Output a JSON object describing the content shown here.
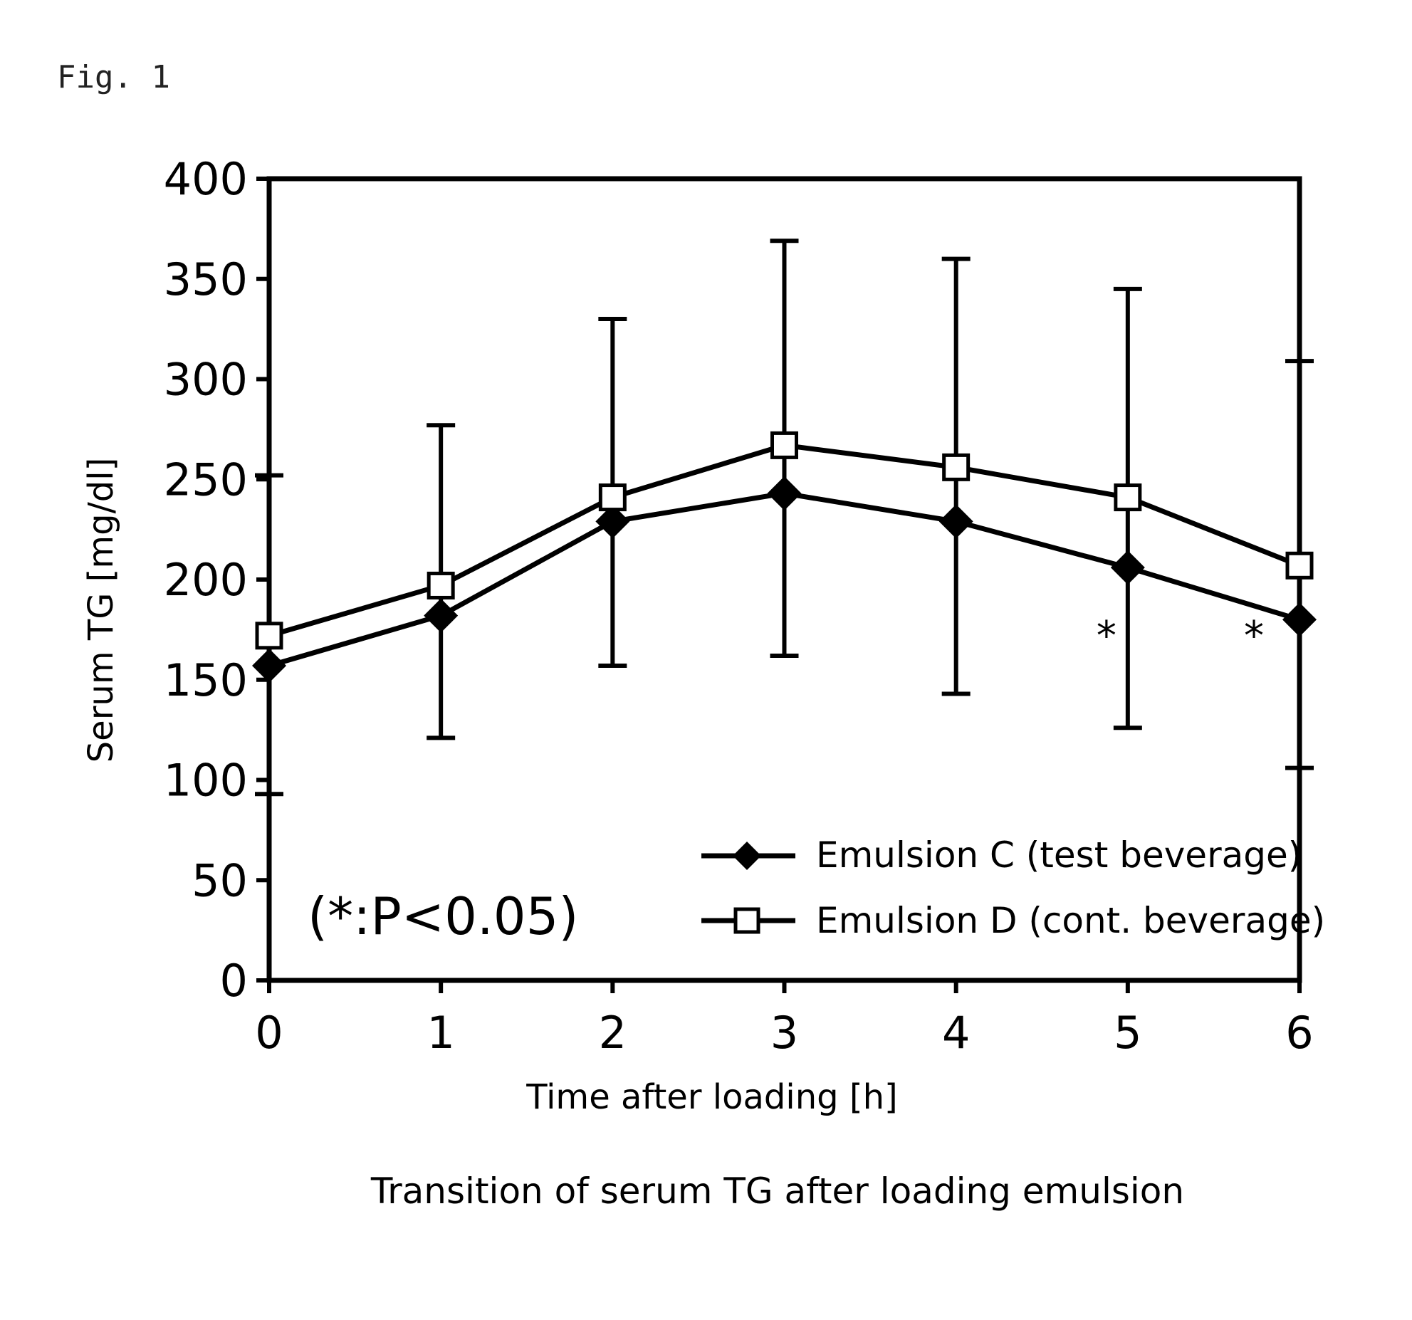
{
  "figure_label": "Fig. 1",
  "caption": "Transition of serum TG after loading emulsion",
  "significance_note": "(*:P<0.05)",
  "chart_data": {
    "type": "line",
    "xlabel": "Time after loading  [h]",
    "ylabel": "Serum TG  [mg/dl]",
    "x": [
      0,
      1,
      2,
      3,
      4,
      5,
      6
    ],
    "xlim": [
      0,
      6
    ],
    "ylim": [
      0,
      400
    ],
    "x_ticks": [
      "0",
      "1",
      "2",
      "3",
      "4",
      "5",
      "6"
    ],
    "y_ticks": [
      "0",
      "50",
      "100",
      "150",
      "200",
      "250",
      "300",
      "350",
      "400"
    ],
    "grid": false,
    "legend_position": "bottom-right",
    "series": [
      {
        "name": "Emulsion C (test beverage)",
        "marker": "filled-diamond",
        "color": "#000000",
        "values": [
          157,
          182,
          229,
          243,
          229,
          206,
          180
        ],
        "error_high": [
          null,
          277,
          330,
          369,
          360,
          345,
          null
        ],
        "error_low": [
          null,
          121,
          157,
          162,
          143,
          126,
          null
        ]
      },
      {
        "name": "Emulsion D (cont. beverage)",
        "marker": "open-square",
        "color": "#000000",
        "values": [
          172,
          197,
          241,
          267,
          256,
          241,
          207
        ],
        "error_high": [
          252,
          null,
          null,
          null,
          null,
          null,
          309
        ],
        "error_low": [
          93,
          null,
          null,
          null,
          null,
          null,
          106
        ]
      }
    ],
    "significance_markers": [
      {
        "x": 5,
        "label": "*"
      },
      {
        "x": 6,
        "label": "*"
      }
    ]
  }
}
